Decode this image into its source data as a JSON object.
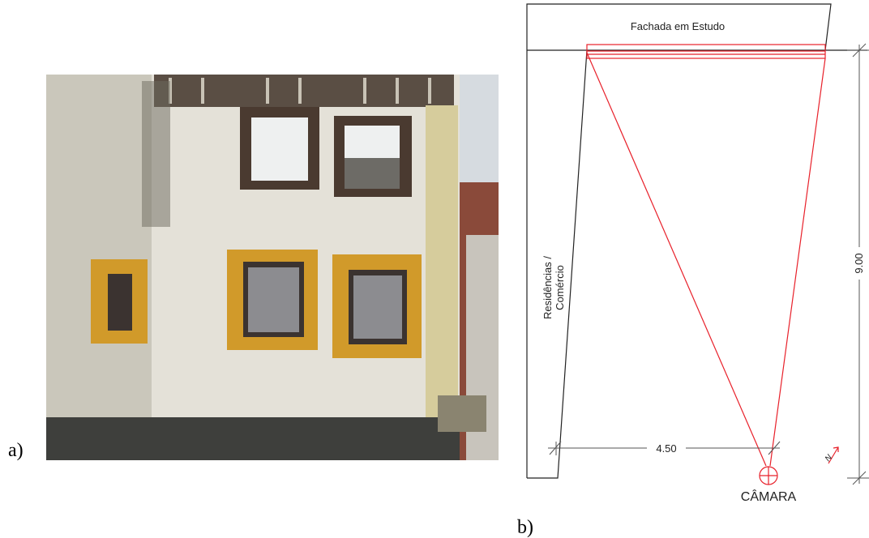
{
  "panels": {
    "a": "a)",
    "b": "b)"
  },
  "diagram": {
    "facade_label": "Fachada em Estudo",
    "side_label": [
      "Residências /",
      "Comércio"
    ],
    "height_dim": "9.00",
    "width_dim": "4.50",
    "camera_label": "CÂMARA",
    "north_label": "N"
  }
}
